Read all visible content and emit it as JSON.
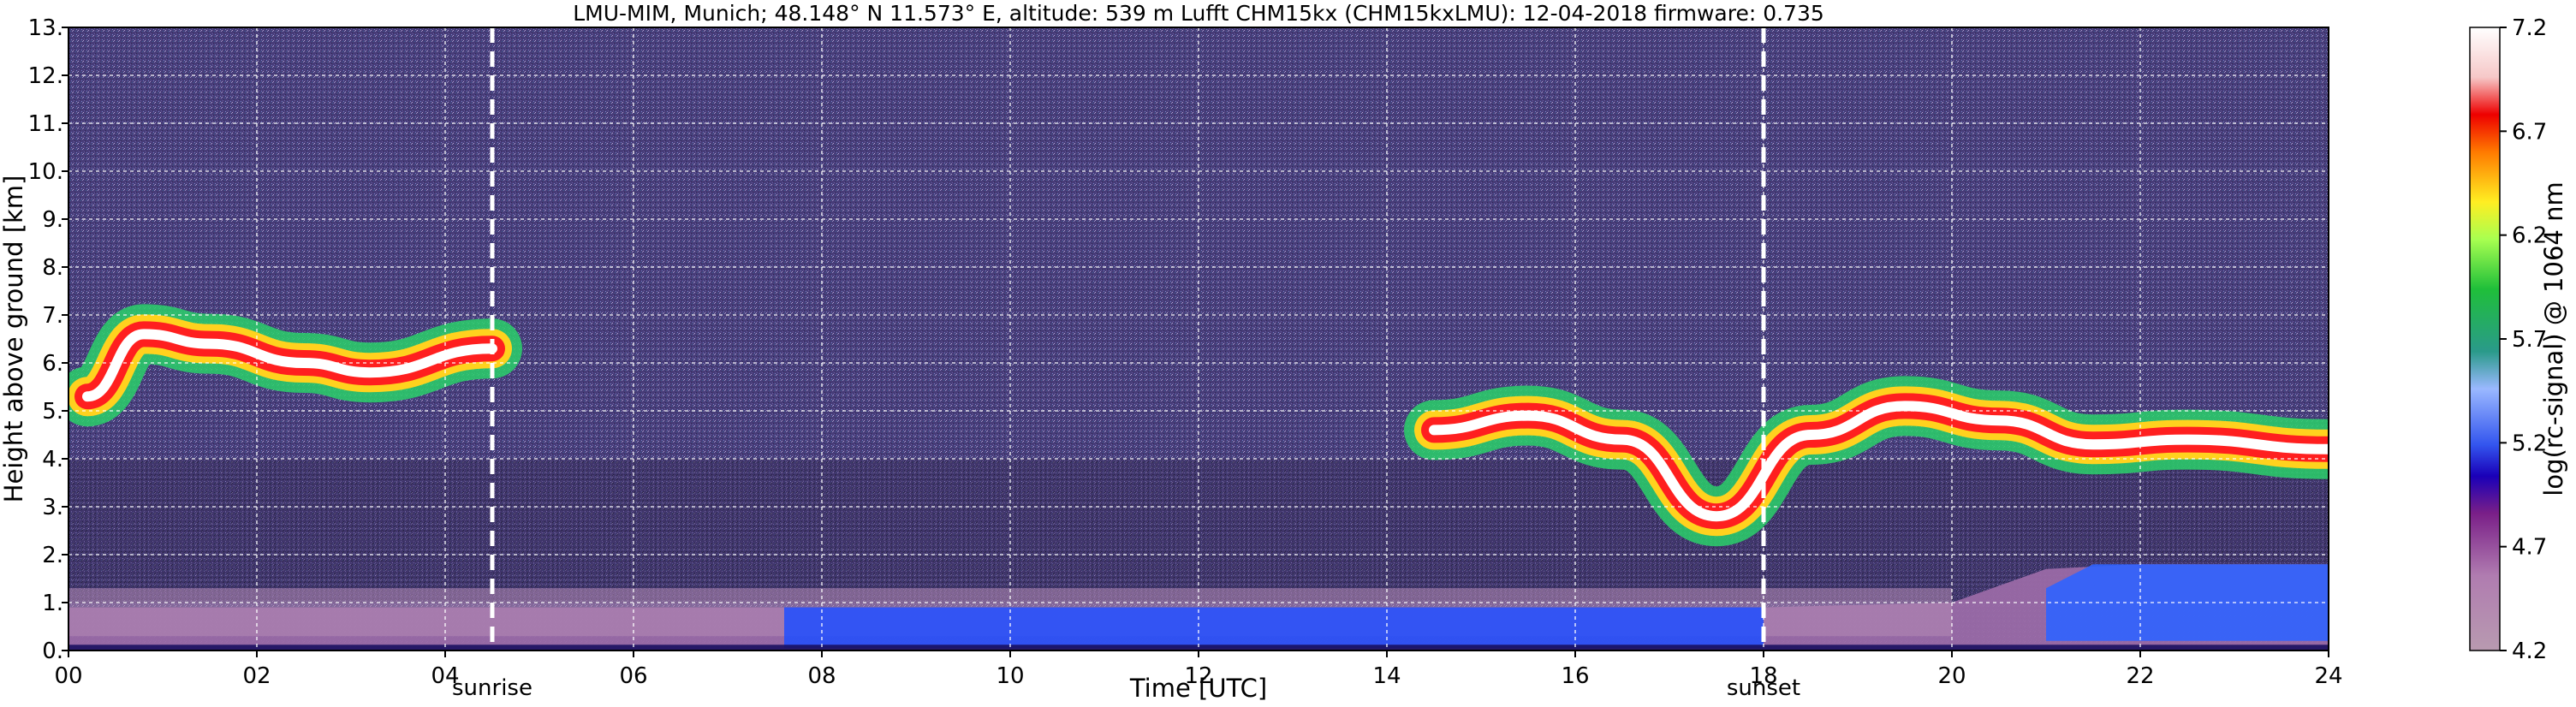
{
  "chart_data": {
    "type": "heatmap",
    "title": "LMU-MIM, Munich; 48.148° N 11.573° E, altitude: 539 m    Lufft CHM15kx (CHM15kxLMU): 12-04-2018    firmware: 0.735",
    "xlabel": "Time [UTC]",
    "ylabel": "Height above ground [km]",
    "x_ticks": [
      "00",
      "02",
      "04",
      "06",
      "08",
      "10",
      "12",
      "14",
      "16",
      "18",
      "20",
      "22",
      "24"
    ],
    "y_ticks": [
      "0.",
      "1.",
      "2.",
      "3.",
      "4.",
      "5.",
      "6.",
      "7.",
      "8.",
      "9.",
      "10.",
      "11.",
      "12.",
      "13."
    ],
    "xlim": [
      0,
      24
    ],
    "ylim": [
      0,
      13
    ],
    "grid": true,
    "events": [
      {
        "label": "sunrise",
        "x": 4.5
      },
      {
        "label": "sunset",
        "x": 18.0
      }
    ],
    "colorbar": {
      "label": "log(rc-signal) @ 1064 nm",
      "range": [
        4.2,
        7.2
      ],
      "ticks": [
        "4.2",
        "4.7",
        "5.2",
        "5.7",
        "6.2",
        "6.7",
        "7.2"
      ]
    },
    "layers": [
      {
        "name": "boundary layer aerosol",
        "times": [
          0,
          2,
          4,
          6,
          8,
          10,
          12,
          14,
          16,
          18,
          20,
          21,
          22,
          24
        ],
        "top_km": [
          0.9,
          0.9,
          0.9,
          0.9,
          0.9,
          0.9,
          0.9,
          0.9,
          0.9,
          0.9,
          1.0,
          1.7,
          1.8,
          1.8
        ]
      },
      {
        "name": "cloud layer (early)",
        "times": [
          0.2,
          0.8,
          1.5,
          2.5,
          3.2,
          4.5
        ],
        "height_km": [
          5.3,
          6.6,
          6.4,
          6.0,
          5.8,
          6.3
        ]
      },
      {
        "name": "cloud layer (late)",
        "times": [
          14.5,
          15.5,
          16.5,
          17.5,
          18.5,
          19.5,
          20.5,
          21.5,
          22.5,
          24
        ],
        "height_km": [
          4.6,
          4.9,
          4.4,
          2.8,
          4.5,
          5.1,
          4.8,
          4.3,
          4.4,
          4.2
        ]
      }
    ]
  },
  "colors": {
    "background_signal": "#4a3f7a",
    "noise": "#8c84b4",
    "cloud_core": "#ffffff",
    "cloud_high": "#ff1f1f",
    "cloud_mid": "#ffd21e",
    "cloud_edge": "#2ad06a",
    "aerosol": "#9a6aa6",
    "aerosol_blue": "#1f4dff"
  }
}
